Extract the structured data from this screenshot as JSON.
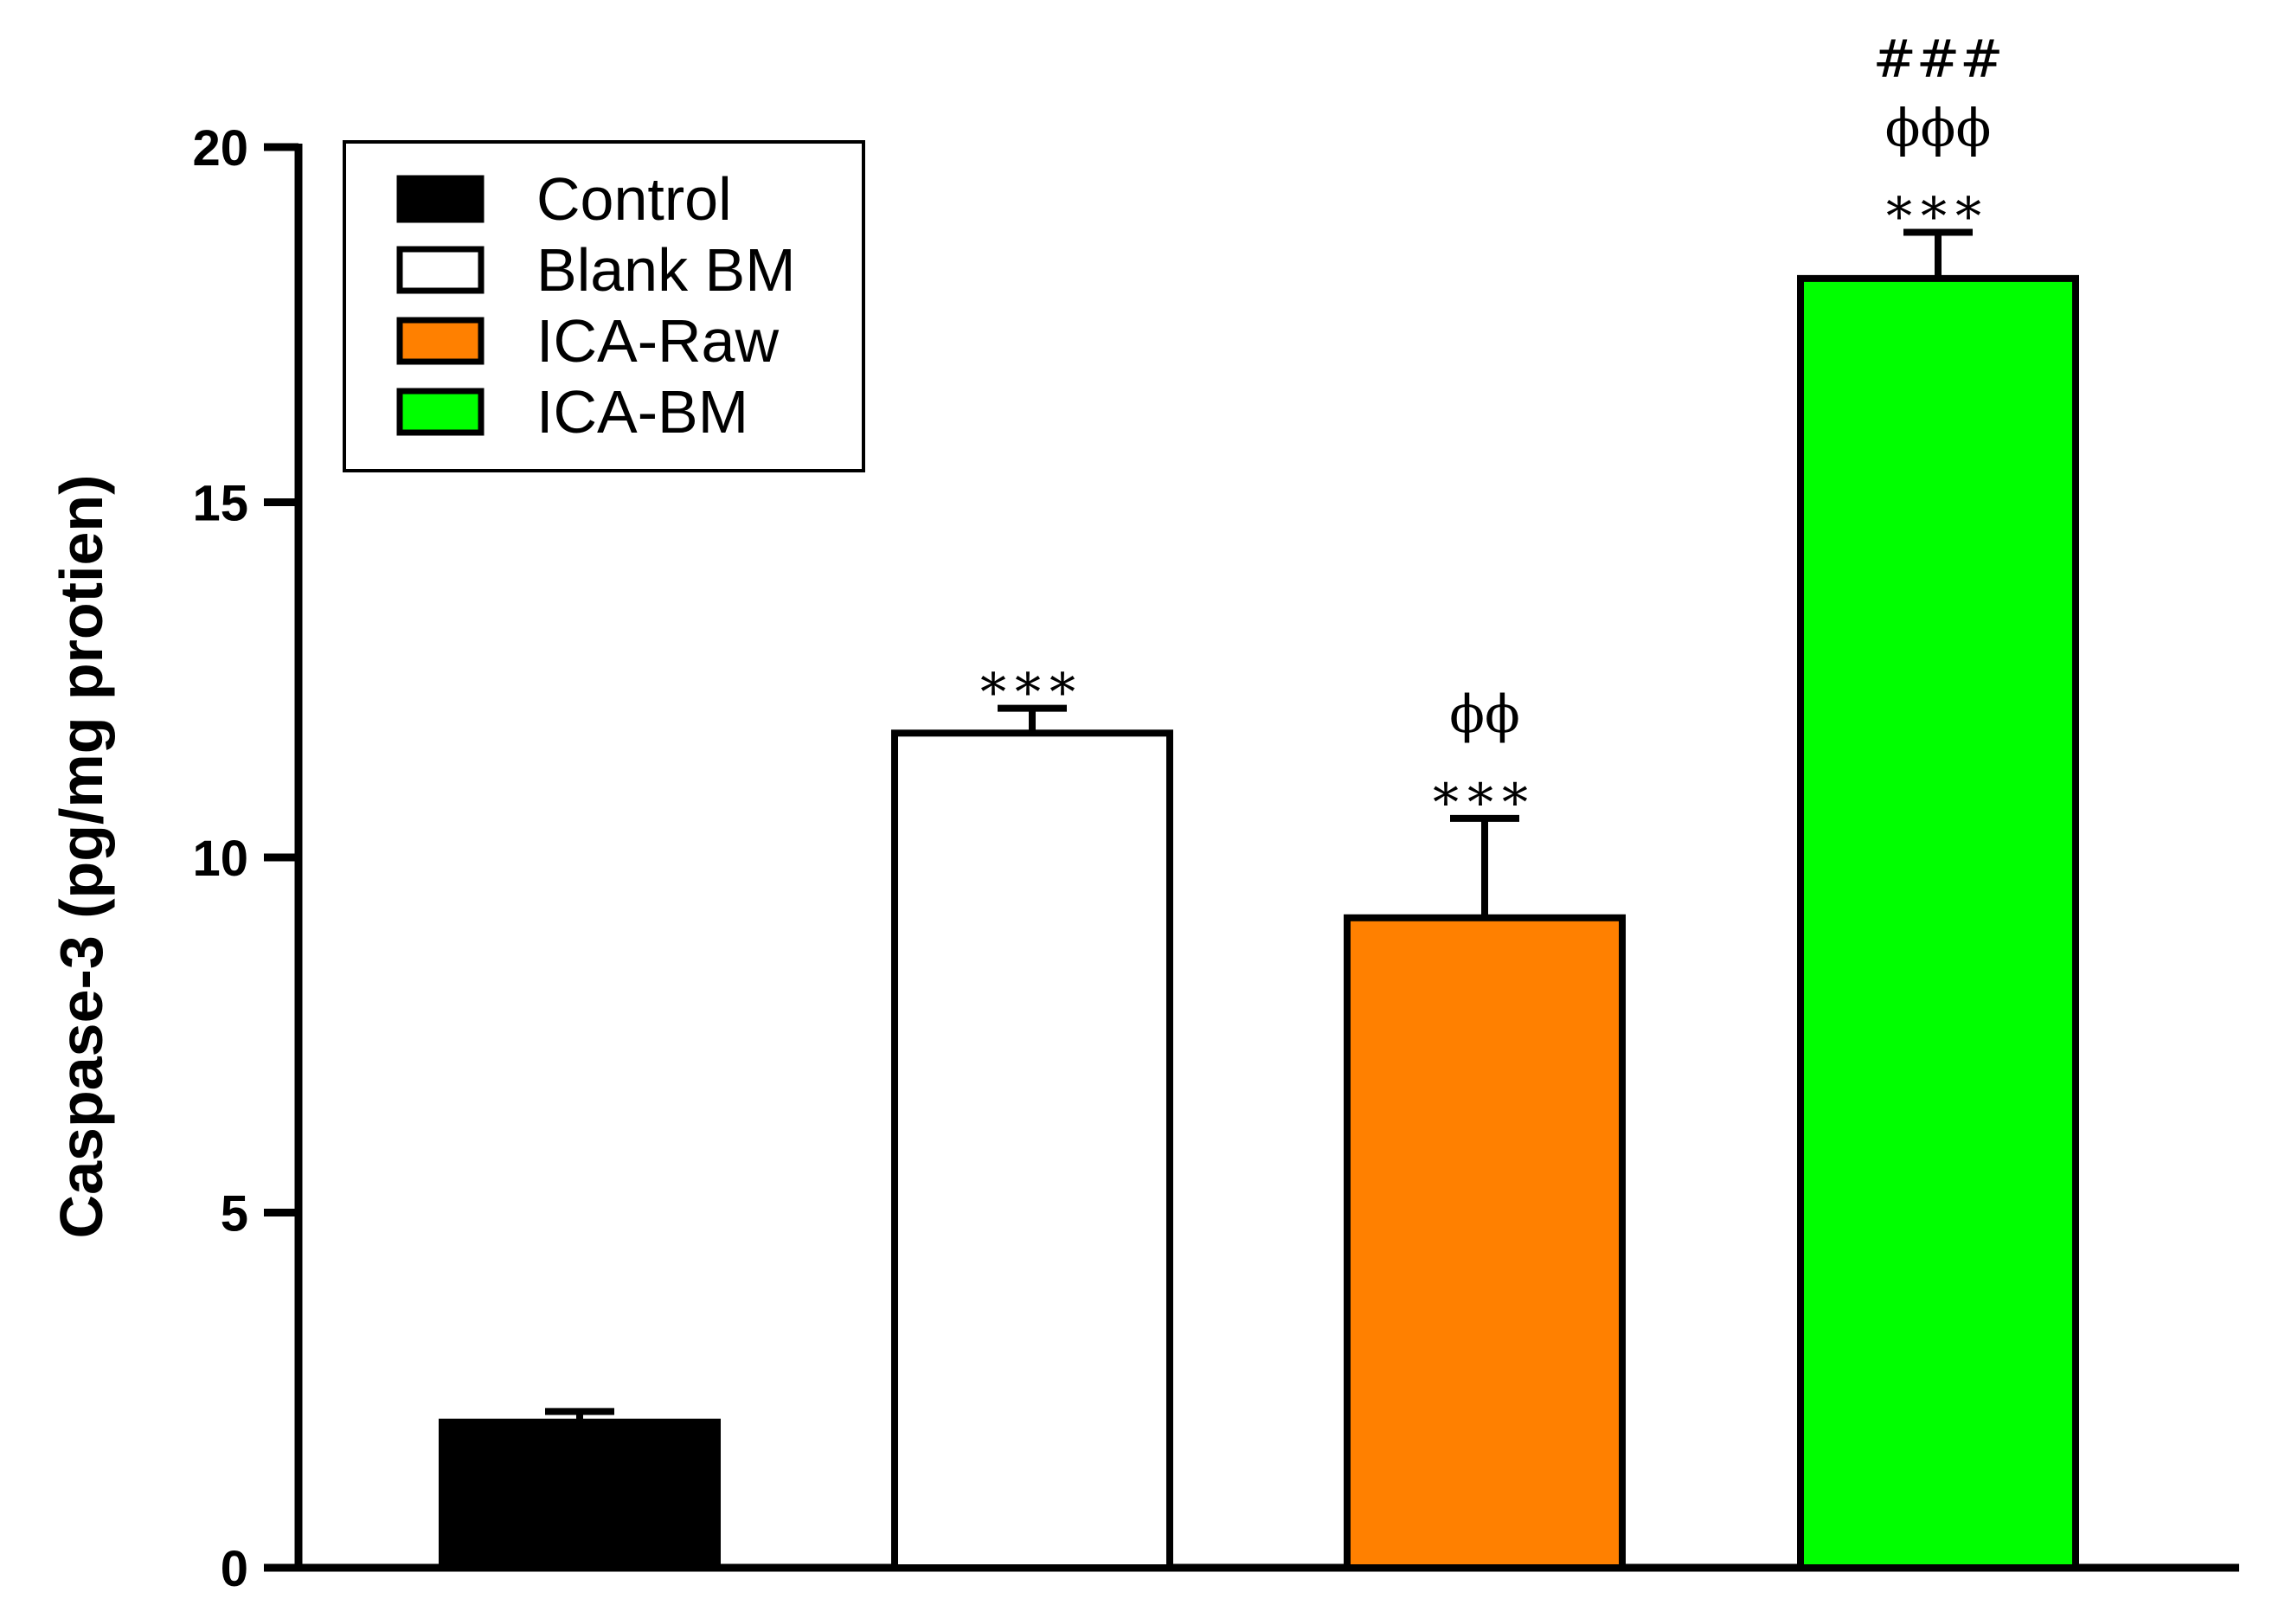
{
  "chart_data": {
    "type": "bar",
    "title": "",
    "xlabel": "",
    "ylabel": "Caspase-3 (pg/mg protien)",
    "ylim": [
      0,
      20
    ],
    "yticks": [
      "0",
      "5",
      "10",
      "15",
      "20"
    ],
    "grid": false,
    "legend_position": "top-left",
    "categories": [
      "Control",
      "Blank BM",
      "ICA-Raw",
      "ICA-BM"
    ],
    "values": [
      2.05,
      11.75,
      9.15,
      18.15
    ],
    "errors": [
      0.15,
      0.35,
      1.4,
      0.65
    ],
    "colors": [
      "#000000",
      "#ffffff",
      "#ff8000",
      "#00ff00"
    ],
    "annotations": [
      [],
      [
        "***"
      ],
      [
        "ϕϕ",
        "***"
      ],
      [
        "###",
        "ϕϕϕ",
        "***"
      ]
    ]
  }
}
